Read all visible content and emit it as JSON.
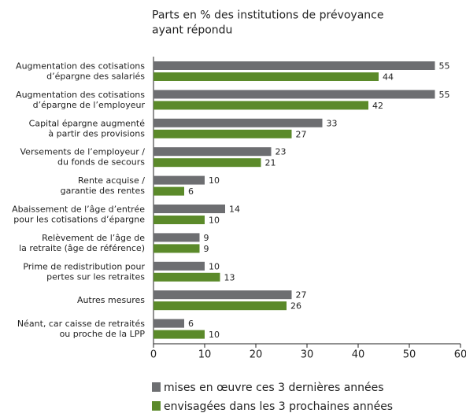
{
  "chart_data": {
    "type": "bar",
    "orientation": "horizontal",
    "title": "Parts en % des institutions de prévoyance\nayant répondu",
    "categories": [
      "Augmentation des cotisations\nd’épargne des salariés",
      "Augmentation des cotisations\nd’épargne de l’employeur",
      "Capital épargne augmenté\nà partir des provisions",
      "Versements de l’employeur /\ndu fonds de secours",
      "Rente acquise /\ngarantie des rentes",
      "Abaissement de l’âge d’entrée\npour les cotisations d’épargne",
      "Relèvement de l’âge de\nla retraite (âge de référence)",
      "Prime de redistribution pour\npertes sur les retraites",
      "Autres mesures",
      "Néant, car caisse de retraités\nou proche de la LPP"
    ],
    "series": [
      {
        "name": "mises en œuvre ces 3 dernières années",
        "color": "#6d6e71",
        "values": [
          55,
          55,
          33,
          23,
          10,
          14,
          9,
          10,
          27,
          6
        ]
      },
      {
        "name": "envisagées dans les 3 prochaines années",
        "color": "#5b8a2a",
        "values": [
          44,
          42,
          27,
          21,
          6,
          10,
          9,
          13,
          26,
          10
        ]
      }
    ],
    "xlim": [
      0,
      60
    ],
    "xticks": [
      0,
      10,
      20,
      30,
      40,
      50,
      60
    ]
  }
}
